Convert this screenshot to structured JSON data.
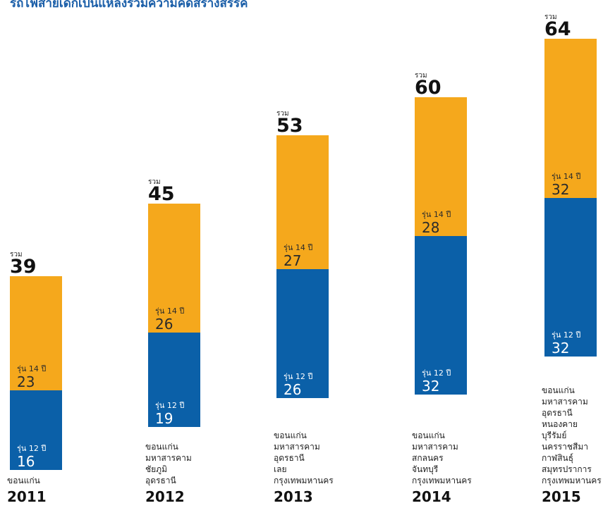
{
  "title": "รถไฟสายเด็กเป็นแหล่งรวมความคิดสร้างสรรค์",
  "colors": {
    "senior": "#f5a81c",
    "junior": "#0b60a8"
  },
  "chart_data": {
    "type": "bar",
    "stacked": true,
    "categories": [
      "2011",
      "2012",
      "2013",
      "2014",
      "2015"
    ],
    "series": [
      {
        "name": "รุ่น 12 ปี",
        "values": [
          16,
          19,
          26,
          32,
          32
        ]
      },
      {
        "name": "รุ่น 14 ปี",
        "values": [
          23,
          26,
          27,
          28,
          32
        ]
      }
    ],
    "totals": [
      39,
      45,
      53,
      60,
      64
    ],
    "total_caption": "รวม",
    "ylim": [
      0,
      64
    ],
    "grid": false,
    "provinces": [
      [
        "ขอนแก่น"
      ],
      [
        "ขอนแก่น",
        "มหาสารคาม",
        "ชัยภูมิ",
        "อุดรธานี"
      ],
      [
        "ขอนแก่น",
        "มหาสารคาม",
        "อุดรธานี",
        "เลย",
        "กรุงเทพมหานคร"
      ],
      [
        "ขอนแก่น",
        "มหาสารคาม",
        "สกลนคร",
        "จันทบุรี",
        "กรุงเทพมหานคร"
      ],
      [
        "ขอนแก่น",
        "มหาสารคาม",
        "อุดรธานี",
        "หนองคาย",
        "บุรีรัมย์",
        "นครราชสีมา",
        "กาฬสินธุ์",
        "สมุทรปราการ",
        "กรุงเทพมหานคร"
      ]
    ]
  }
}
